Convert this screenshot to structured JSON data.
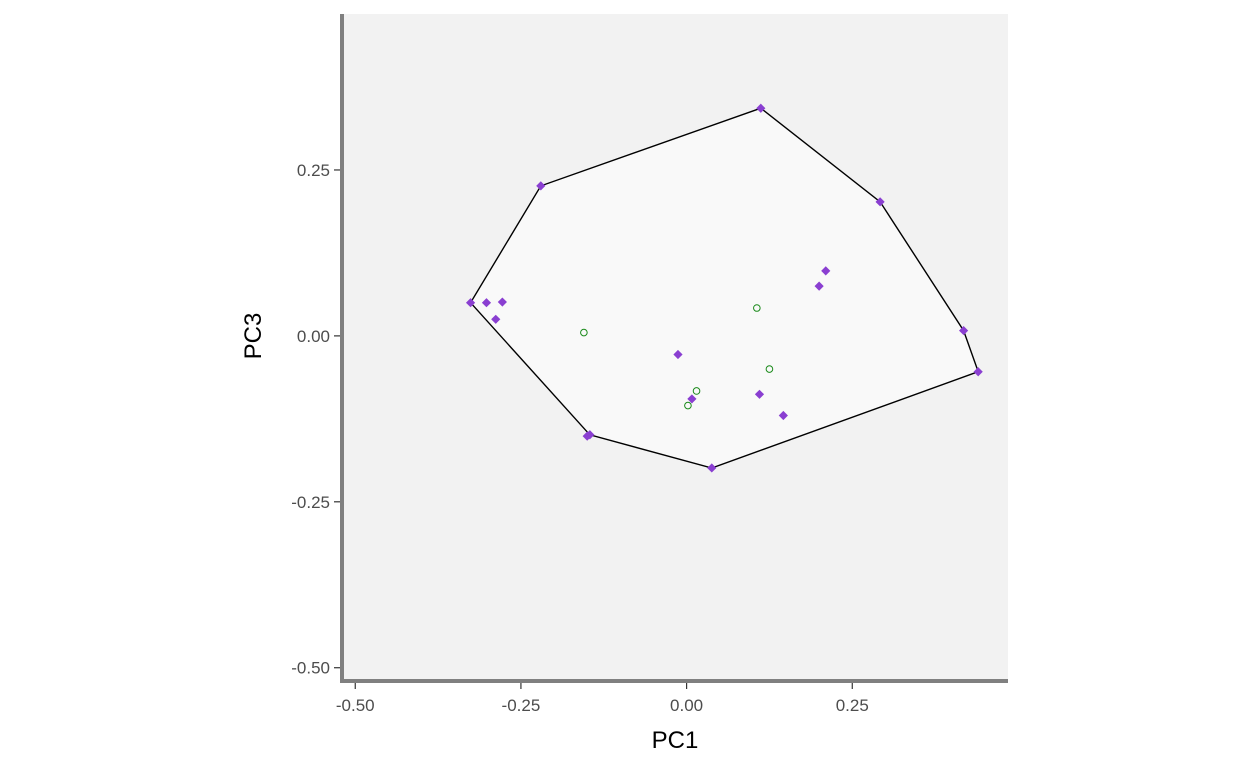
{
  "chart_data": {
    "type": "scatter",
    "title": "",
    "xlabel": "PC1",
    "ylabel": "PC3",
    "xlim": [
      -0.52,
      0.485
    ],
    "ylim": [
      -0.52,
      0.485
    ],
    "x_ticks": [
      -0.5,
      -0.25,
      0.0,
      0.25
    ],
    "x_tick_labels": [
      "-0.50",
      "-0.25",
      "0.00",
      "0.25"
    ],
    "y_ticks": [
      -0.5,
      -0.25,
      0.0,
      0.25
    ],
    "y_tick_labels": [
      "-0.50",
      "-0.25",
      "0.00",
      "0.25"
    ],
    "grid": false,
    "legend": "none",
    "colors": {
      "panel_background": "#f2f2f2",
      "hull_fill": "#f9f9f9",
      "hull_stroke": "#000000",
      "axis_line": "#808080",
      "series_a": "#8a3fd1",
      "series_b": "#1a8a1a"
    },
    "hull": [
      [
        0.112,
        0.343
      ],
      [
        0.292,
        0.202
      ],
      [
        0.418,
        0.008
      ],
      [
        0.44,
        -0.054
      ],
      [
        0.038,
        -0.199
      ],
      [
        -0.146,
        -0.149
      ],
      [
        -0.326,
        0.05
      ],
      [
        -0.22,
        0.226
      ]
    ],
    "series": [
      {
        "marker": "diamond",
        "color": "#8a3fd1",
        "points": [
          [
            0.112,
            0.343
          ],
          [
            0.292,
            0.202
          ],
          [
            0.418,
            0.008
          ],
          [
            0.44,
            -0.054
          ],
          [
            0.038,
            -0.199
          ],
          [
            -0.146,
            -0.149
          ],
          [
            -0.15,
            -0.151
          ],
          [
            -0.326,
            0.05
          ],
          [
            -0.22,
            0.226
          ],
          [
            -0.302,
            0.05
          ],
          [
            -0.278,
            0.051
          ],
          [
            -0.288,
            0.025
          ],
          [
            0.21,
            0.098
          ],
          [
            0.2,
            0.075
          ],
          [
            -0.013,
            -0.028
          ],
          [
            0.008,
            -0.095
          ],
          [
            0.11,
            -0.088
          ],
          [
            0.146,
            -0.12
          ]
        ]
      },
      {
        "marker": "open-circle",
        "color": "#1a8a1a",
        "points": [
          [
            -0.155,
            0.005
          ],
          [
            0.106,
            0.042
          ],
          [
            0.125,
            -0.05
          ],
          [
            0.015,
            -0.083
          ],
          [
            0.002,
            -0.105
          ]
        ]
      }
    ]
  }
}
